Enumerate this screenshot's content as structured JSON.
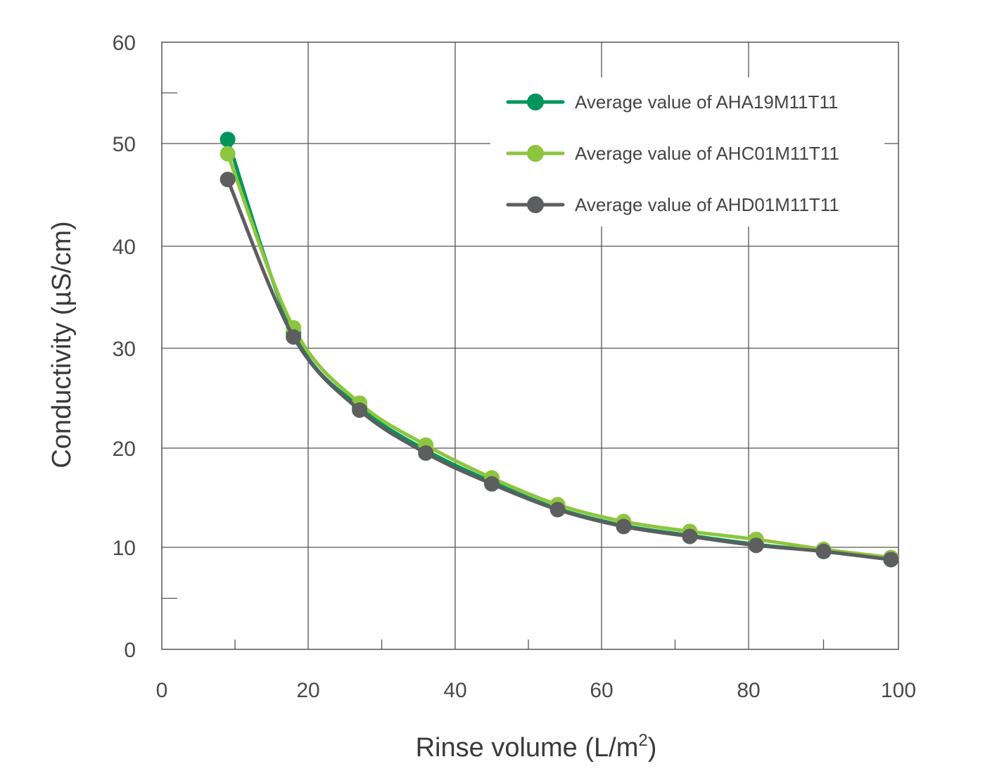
{
  "chart_data": {
    "type": "line",
    "title": "",
    "xlabel": "Rinse volume (L/m",
    "xlabel_superscript": "2",
    "xlabel_suffix": ")",
    "ylabel": "Conductivity (µS/cm)",
    "xlim": [
      0,
      100
    ],
    "ylim": [
      0,
      60
    ],
    "x_ticks": [
      0,
      20,
      40,
      60,
      80,
      100
    ],
    "y_ticks": [
      0,
      10,
      20,
      30,
      40,
      50,
      60
    ],
    "x_tick_labels": [
      "0",
      "20",
      "40",
      "60",
      "80",
      "100"
    ],
    "y_tick_labels": [
      "0",
      "10",
      "20",
      "30",
      "40",
      "50",
      "60"
    ],
    "grid": true,
    "legend_position": "top-right",
    "x": [
      9,
      18,
      27,
      36,
      45,
      54,
      63,
      72,
      81,
      90,
      99
    ],
    "series": [
      {
        "name": "Average value of AHA19M11T11",
        "color": "#00955a",
        "values": [
          50.4,
          31.5,
          24.1,
          19.8,
          16.6,
          13.9,
          12.2,
          11.2,
          10.3,
          9.6,
          8.8
        ]
      },
      {
        "name": "Average value of AHC01M11T11",
        "color": "#8dc53e",
        "values": [
          49,
          32,
          24.5,
          20.3,
          17,
          14.3,
          12.6,
          11.6,
          10.8,
          9.8,
          9
        ]
      },
      {
        "name": "Average value of AHD01M11T11",
        "color": "#5c5e5f",
        "values": [
          46.5,
          31.1,
          23.8,
          19.5,
          16.4,
          13.8,
          12.1,
          11.1,
          10.2,
          9.6,
          8.8
        ]
      }
    ]
  }
}
